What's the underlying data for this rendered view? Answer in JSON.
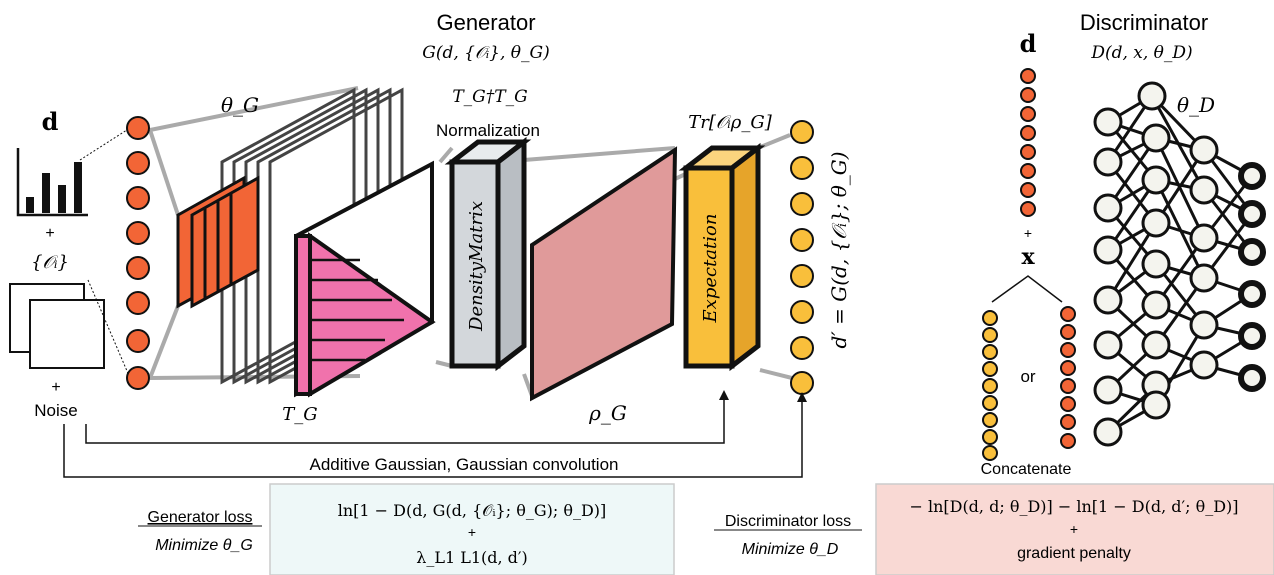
{
  "generator": {
    "title": "Generator",
    "signature": "G(d, {𝒪ᵢ}, θ_G)",
    "input_d": "d",
    "plus1": "+",
    "obs_set": "{𝒪ᵢ}",
    "plus2": "+",
    "noise": "Noise",
    "theta_g": "θ_G",
    "t_g": "T_G",
    "tt": "T_G†T_G",
    "normalization": "Normalization",
    "density_matrix": "DensityMatrix",
    "rho_g": "ρ_G",
    "trace": "Tr[𝒪ᵢρ_G]",
    "expectation": "Expectation",
    "output": "d′ = G(d, {𝒪ᵢ}; θ_G)"
  },
  "noise_paths": {
    "label": "Additive Gaussian, Gaussian convolution"
  },
  "discriminator": {
    "title": "Discriminator",
    "signature": "D(d, x, θ_D)",
    "input_d": "d",
    "plus": "+",
    "input_x": "x",
    "or": "or",
    "concatenate": "Concatenate",
    "theta_d": "θ_D"
  },
  "losses": {
    "generator_label": "Generator loss",
    "generator_minimize": "Minimize θ_G",
    "generator_line1": "ln[1 − D(d, G(d, {𝒪ᵢ}; θ_G); θ_D)]",
    "generator_plus": "+",
    "generator_line2": "λ_L1 L1(d, d′)",
    "discriminator_label": "Discriminator loss",
    "discriminator_minimize": "Minimize θ_D",
    "discriminator_line1": "− ln[D(d, d; θ_D)] − ln[1 − D(d, d′; θ_D)]",
    "discriminator_plus": "+",
    "discriminator_line2": "gradient penalty"
  },
  "colors": {
    "orange": "#f26536",
    "yellow": "#f9bf3b",
    "pink": "#f072ac",
    "rose": "#e09a9a",
    "gray_box": "#d3d7db",
    "gen_loss_bg": "#eef8f8",
    "disc_loss_bg": "#f9d9d4",
    "node_fill": "#f4f4ee"
  }
}
